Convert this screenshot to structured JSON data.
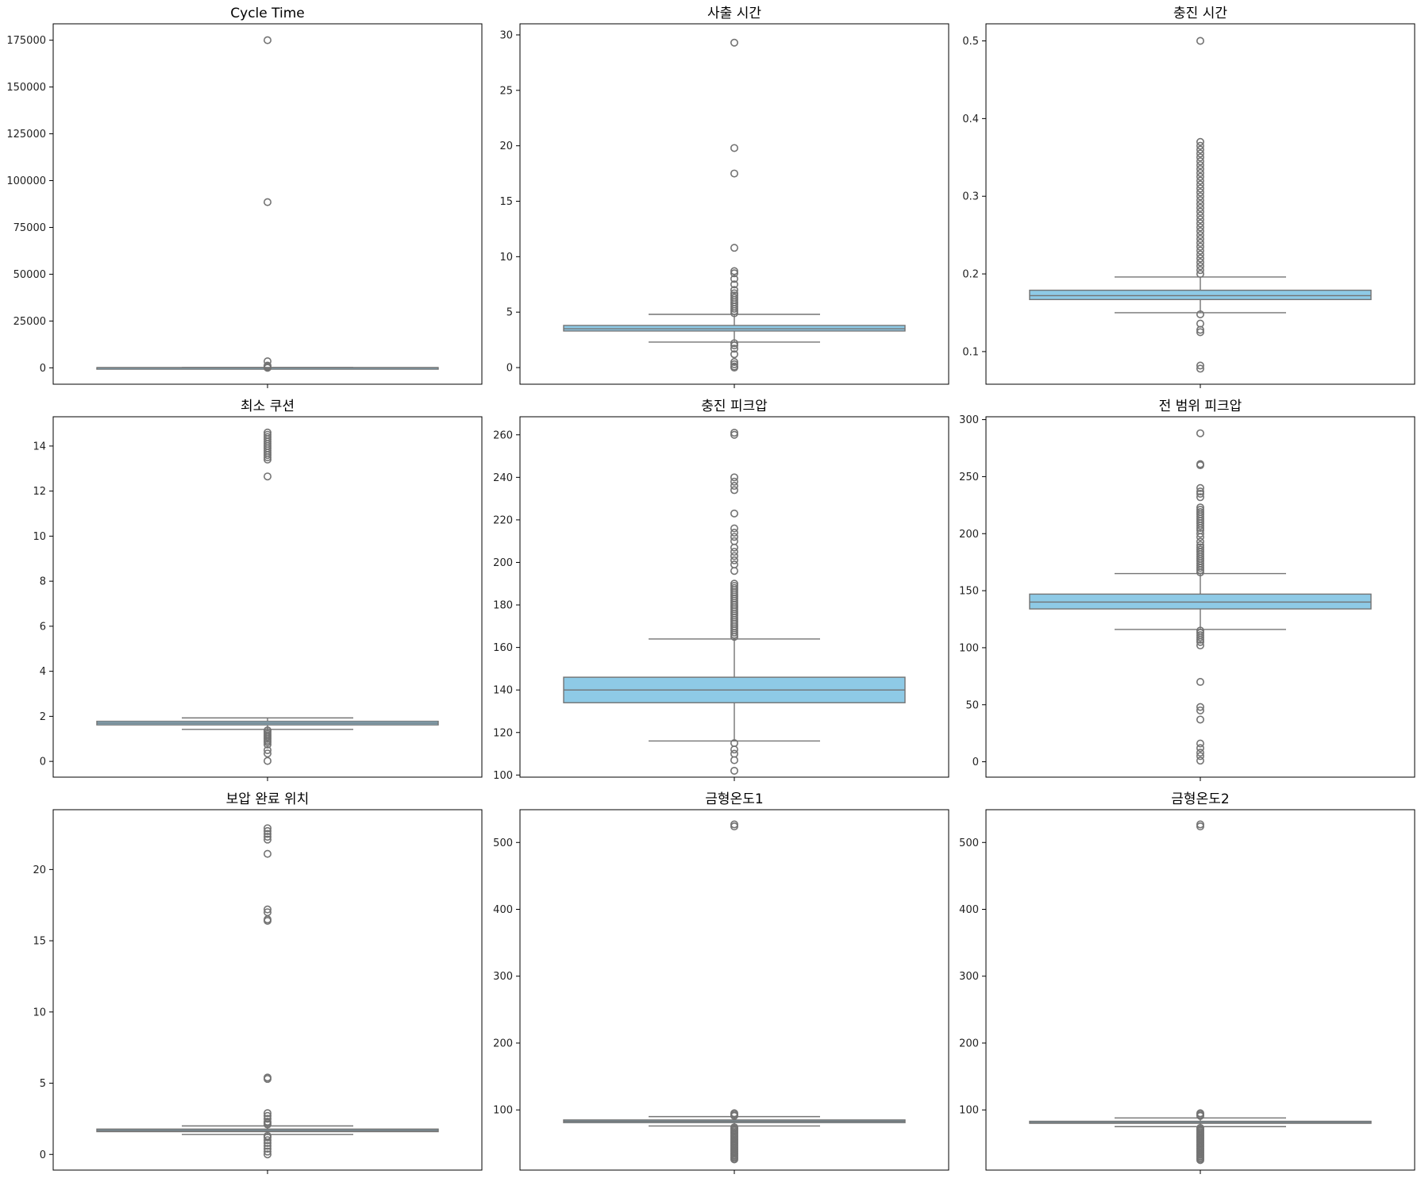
{
  "chart_data": [
    {
      "type": "box",
      "title": "Cycle Time",
      "ylim": [
        -8750,
        183750
      ],
      "yticks": [
        0,
        25000,
        50000,
        75000,
        100000,
        125000,
        150000,
        175000
      ],
      "box": {
        "q1": 118,
        "median": 121,
        "q3": 123,
        "whisker_low": 112,
        "whisker_high": 131
      },
      "outliers": [
        175000,
        88500,
        3500,
        1200,
        800,
        300,
        0
      ]
    },
    {
      "type": "box",
      "title": "사출 시간",
      "ylim": [
        -1.5,
        31
      ],
      "yticks": [
        0,
        5,
        10,
        15,
        20,
        25,
        30
      ],
      "box": {
        "q1": 3.3,
        "median": 3.5,
        "q3": 3.8,
        "whisker_low": 2.3,
        "whisker_high": 4.8
      },
      "outliers": [
        29.3,
        19.8,
        17.5,
        10.8,
        8.7,
        8.5,
        8.0,
        7.5,
        7.0,
        6.7,
        6.5,
        6.3,
        6.1,
        5.9,
        5.7,
        5.5,
        5.3,
        5.1,
        4.9,
        2.2,
        2.0,
        1.7,
        1.2,
        0.5,
        0.3,
        0.1,
        0.0
      ]
    },
    {
      "type": "box",
      "title": "충진 시간",
      "ylim": [
        0.058,
        0.522
      ],
      "yticks": [
        0.1,
        0.2,
        0.3,
        0.4,
        0.5
      ],
      "box": {
        "q1": 0.167,
        "median": 0.172,
        "q3": 0.179,
        "whisker_low": 0.15,
        "whisker_high": 0.196
      },
      "outliers": [
        0.5,
        0.37,
        0.365,
        0.36,
        0.355,
        0.35,
        0.345,
        0.34,
        0.335,
        0.33,
        0.325,
        0.32,
        0.315,
        0.31,
        0.305,
        0.3,
        0.295,
        0.29,
        0.285,
        0.28,
        0.275,
        0.27,
        0.265,
        0.26,
        0.255,
        0.25,
        0.245,
        0.24,
        0.235,
        0.23,
        0.225,
        0.22,
        0.215,
        0.21,
        0.205,
        0.2,
        0.148,
        0.136,
        0.128,
        0.125,
        0.082,
        0.078
      ]
    },
    {
      "type": "box",
      "title": "최소 쿠션",
      "ylim": [
        -0.7,
        15.3
      ],
      "yticks": [
        0,
        2,
        4,
        6,
        8,
        10,
        12,
        14
      ],
      "box": {
        "q1": 1.62,
        "median": 1.7,
        "q3": 1.78,
        "whisker_low": 1.42,
        "whisker_high": 1.93
      },
      "outliers": [
        14.6,
        14.5,
        14.4,
        14.3,
        14.2,
        14.1,
        14.0,
        13.9,
        13.8,
        13.7,
        13.6,
        13.5,
        13.4,
        12.65,
        1.38,
        1.3,
        1.22,
        1.15,
        1.08,
        1.0,
        0.92,
        0.85,
        0.75,
        0.5,
        0.35,
        0.02
      ]
    },
    {
      "type": "box",
      "title": "충진 피크압",
      "ylim": [
        99,
        268.5
      ],
      "yticks": [
        100,
        120,
        140,
        160,
        180,
        200,
        220,
        240,
        260
      ],
      "box": {
        "q1": 134,
        "median": 140,
        "q3": 146,
        "whisker_low": 116,
        "whisker_high": 164
      },
      "outliers": [
        261,
        260,
        240,
        238,
        236,
        234,
        223,
        216,
        214,
        212,
        210,
        207,
        205,
        203,
        201,
        199,
        196,
        190,
        189,
        188,
        187,
        186,
        185,
        184,
        183,
        182,
        181,
        180,
        179,
        178,
        177,
        176,
        175,
        174,
        173,
        172,
        171,
        170,
        169,
        168,
        167,
        166,
        165,
        115,
        112,
        110,
        107,
        102
      ]
    },
    {
      "type": "box",
      "title": "전 범위 피크압",
      "ylim": [
        -13.5,
        302.5
      ],
      "yticks": [
        0,
        50,
        100,
        150,
        200,
        250,
        300
      ],
      "box": {
        "q1": 134,
        "median": 140,
        "q3": 147,
        "whisker_low": 116,
        "whisker_high": 165
      },
      "outliers": [
        288,
        261,
        260,
        240,
        237,
        235,
        232,
        223,
        221,
        219,
        217,
        215,
        213,
        211,
        209,
        207,
        205,
        203,
        200,
        197,
        193,
        190,
        188,
        186,
        184,
        182,
        180,
        178,
        176,
        174,
        172,
        170,
        168,
        166,
        115,
        113,
        111,
        109,
        107,
        105,
        102,
        70,
        48,
        45,
        37,
        16,
        12,
        8,
        5,
        1
      ]
    },
    {
      "type": "box",
      "title": "보압 완료 위치",
      "ylim": [
        -1.1,
        24.2
      ],
      "yticks": [
        0,
        5,
        10,
        15,
        20
      ],
      "box": {
        "q1": 1.6,
        "median": 1.68,
        "q3": 1.78,
        "whisker_low": 1.4,
        "whisker_high": 2.0
      },
      "outliers": [
        22.9,
        22.7,
        22.5,
        22.3,
        22.1,
        21.1,
        17.2,
        17.0,
        16.5,
        16.4,
        5.4,
        5.3,
        2.9,
        2.7,
        2.5,
        2.3,
        2.2,
        2.1,
        1.3,
        1.2,
        1.0,
        0.8,
        0.6,
        0.4,
        0.2,
        0.0
      ]
    },
    {
      "type": "box",
      "title": "금형온도1",
      "ylim": [
        10,
        549
      ],
      "yticks": [
        100,
        200,
        300,
        400,
        500
      ],
      "box": {
        "q1": 81,
        "median": 83,
        "q3": 85,
        "whisker_low": 76,
        "whisker_high": 90
      },
      "outliers": [
        527,
        524,
        95,
        93,
        91,
        74,
        72,
        70,
        68,
        66,
        64,
        62,
        60,
        58,
        56,
        54,
        52,
        50,
        48,
        46,
        44,
        42,
        40,
        38,
        36,
        34,
        32,
        30,
        28,
        26
      ]
    },
    {
      "type": "box",
      "title": "금형온도2",
      "ylim": [
        10,
        549
      ],
      "yticks": [
        100,
        200,
        300,
        400,
        500
      ],
      "box": {
        "q1": 80,
        "median": 81,
        "q3": 83,
        "whisker_low": 75,
        "whisker_high": 88
      },
      "outliers": [
        527,
        524,
        95,
        93,
        91,
        73,
        71,
        69,
        67,
        65,
        63,
        61,
        59,
        57,
        55,
        53,
        51,
        49,
        47,
        45,
        43,
        41,
        39,
        37,
        35,
        33,
        31,
        29,
        27,
        25
      ]
    }
  ],
  "colors": {
    "box_fill": "#8ecae6",
    "line": "#737373",
    "frame": "#000000"
  }
}
